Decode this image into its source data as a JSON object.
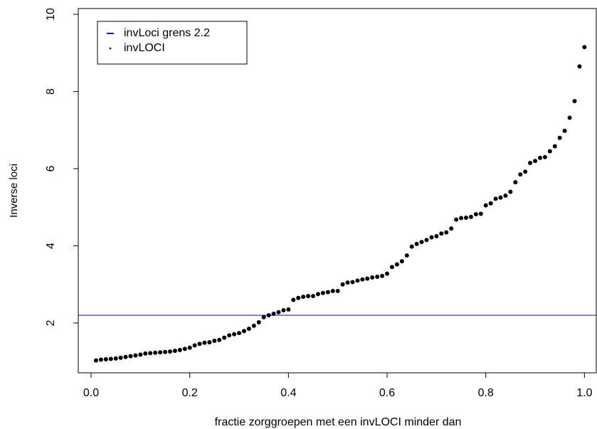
{
  "chart_data": {
    "type": "scatter",
    "xlabel": "fractie zorggroepen met een invLOCI minder dan",
    "ylabel": "Inverse loci",
    "x": [
      0.01,
      0.02,
      0.03,
      0.04,
      0.05,
      0.06,
      0.07,
      0.08,
      0.09,
      0.1,
      0.11,
      0.12,
      0.13,
      0.14,
      0.15,
      0.16,
      0.17,
      0.18,
      0.19,
      0.2,
      0.21,
      0.22,
      0.23,
      0.24,
      0.25,
      0.26,
      0.27,
      0.28,
      0.29,
      0.3,
      0.31,
      0.32,
      0.33,
      0.34,
      0.35,
      0.36,
      0.37,
      0.38,
      0.39,
      0.4,
      0.41,
      0.42,
      0.43,
      0.44,
      0.45,
      0.46,
      0.47,
      0.48,
      0.49,
      0.5,
      0.51,
      0.52,
      0.53,
      0.54,
      0.55,
      0.56,
      0.57,
      0.58,
      0.59,
      0.6,
      0.61,
      0.62,
      0.63,
      0.64,
      0.65,
      0.66,
      0.67,
      0.68,
      0.69,
      0.7,
      0.71,
      0.72,
      0.73,
      0.74,
      0.75,
      0.76,
      0.77,
      0.78,
      0.79,
      0.8,
      0.81,
      0.82,
      0.83,
      0.84,
      0.85,
      0.86,
      0.87,
      0.88,
      0.89,
      0.9,
      0.91,
      0.92,
      0.93,
      0.94,
      0.95,
      0.96,
      0.97,
      0.98,
      0.99,
      1.0
    ],
    "series": [
      {
        "name": "invLOCI",
        "color": "#000000",
        "values": [
          1.03,
          1.05,
          1.06,
          1.07,
          1.08,
          1.1,
          1.12,
          1.14,
          1.16,
          1.18,
          1.21,
          1.22,
          1.23,
          1.24,
          1.25,
          1.26,
          1.28,
          1.3,
          1.33,
          1.36,
          1.42,
          1.46,
          1.49,
          1.5,
          1.54,
          1.56,
          1.62,
          1.68,
          1.71,
          1.74,
          1.79,
          1.85,
          1.93,
          2.02,
          2.15,
          2.2,
          2.24,
          2.28,
          2.33,
          2.35,
          2.6,
          2.65,
          2.68,
          2.7,
          2.7,
          2.75,
          2.78,
          2.8,
          2.83,
          2.83,
          3.0,
          3.05,
          3.06,
          3.1,
          3.13,
          3.15,
          3.18,
          3.2,
          3.22,
          3.28,
          3.45,
          3.52,
          3.6,
          3.75,
          3.98,
          4.05,
          4.1,
          4.15,
          4.22,
          4.25,
          4.32,
          4.35,
          4.45,
          4.68,
          4.72,
          4.73,
          4.75,
          4.82,
          4.83,
          5.05,
          5.1,
          5.22,
          5.25,
          5.3,
          5.4,
          5.65,
          5.85,
          5.92,
          6.15,
          6.2,
          6.28,
          6.3,
          6.45,
          6.58,
          6.8,
          6.98,
          7.32,
          7.75,
          8.65,
          9.15
        ]
      }
    ],
    "hlines": [
      {
        "name": "invLoci grens 2.2",
        "value": 2.2,
        "color": "#0000ff"
      }
    ],
    "legend": "top-left",
    "xlim": [
      -0.026,
      1.024
    ],
    "ylim": [
      0.71,
      10.15
    ],
    "xticks": [
      {
        "value": 0,
        "label": "0.0"
      },
      0.2,
      0.4,
      0.6,
      0.8,
      {
        "value": 1,
        "label": "1.0"
      }
    ],
    "yticks": [
      2,
      4,
      6,
      8,
      10
    ]
  }
}
